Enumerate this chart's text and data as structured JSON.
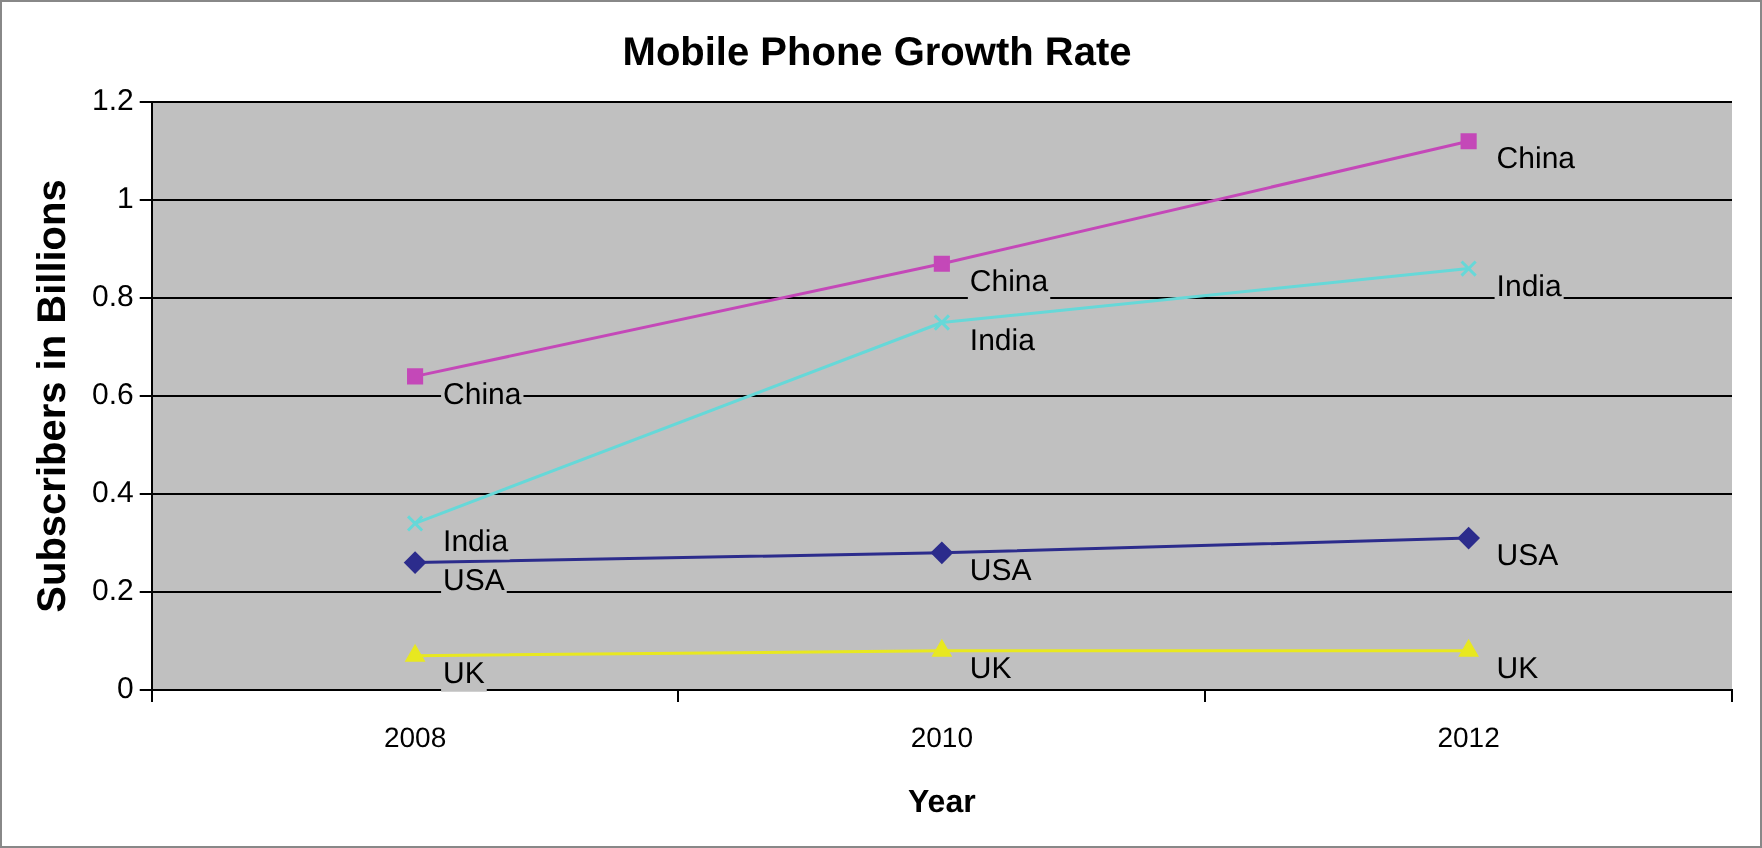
{
  "chart_data": {
    "type": "line",
    "title": "Mobile Phone Growth Rate",
    "xlabel": "Year",
    "ylabel": "Subscribers in Billions",
    "categories": [
      "2008",
      "2010",
      "2012"
    ],
    "series": [
      {
        "name": "China",
        "color": "#c448b8",
        "marker": "square",
        "values": [
          0.64,
          0.87,
          1.12
        ]
      },
      {
        "name": "India",
        "color": "#66d8d8",
        "marker": "cross",
        "values": [
          0.34,
          0.75,
          0.86
        ]
      },
      {
        "name": "USA",
        "color": "#2c2c8c",
        "marker": "diamond",
        "values": [
          0.26,
          0.28,
          0.31
        ]
      },
      {
        "name": "UK",
        "color": "#e8e820",
        "marker": "triangle",
        "values": [
          0.07,
          0.08,
          0.08
        ]
      }
    ],
    "ylim": [
      0,
      1.2
    ],
    "yticks": [
      0,
      0.2,
      0.4,
      0.6,
      0.8,
      1,
      1.2
    ],
    "grid": "y",
    "legend": false
  }
}
